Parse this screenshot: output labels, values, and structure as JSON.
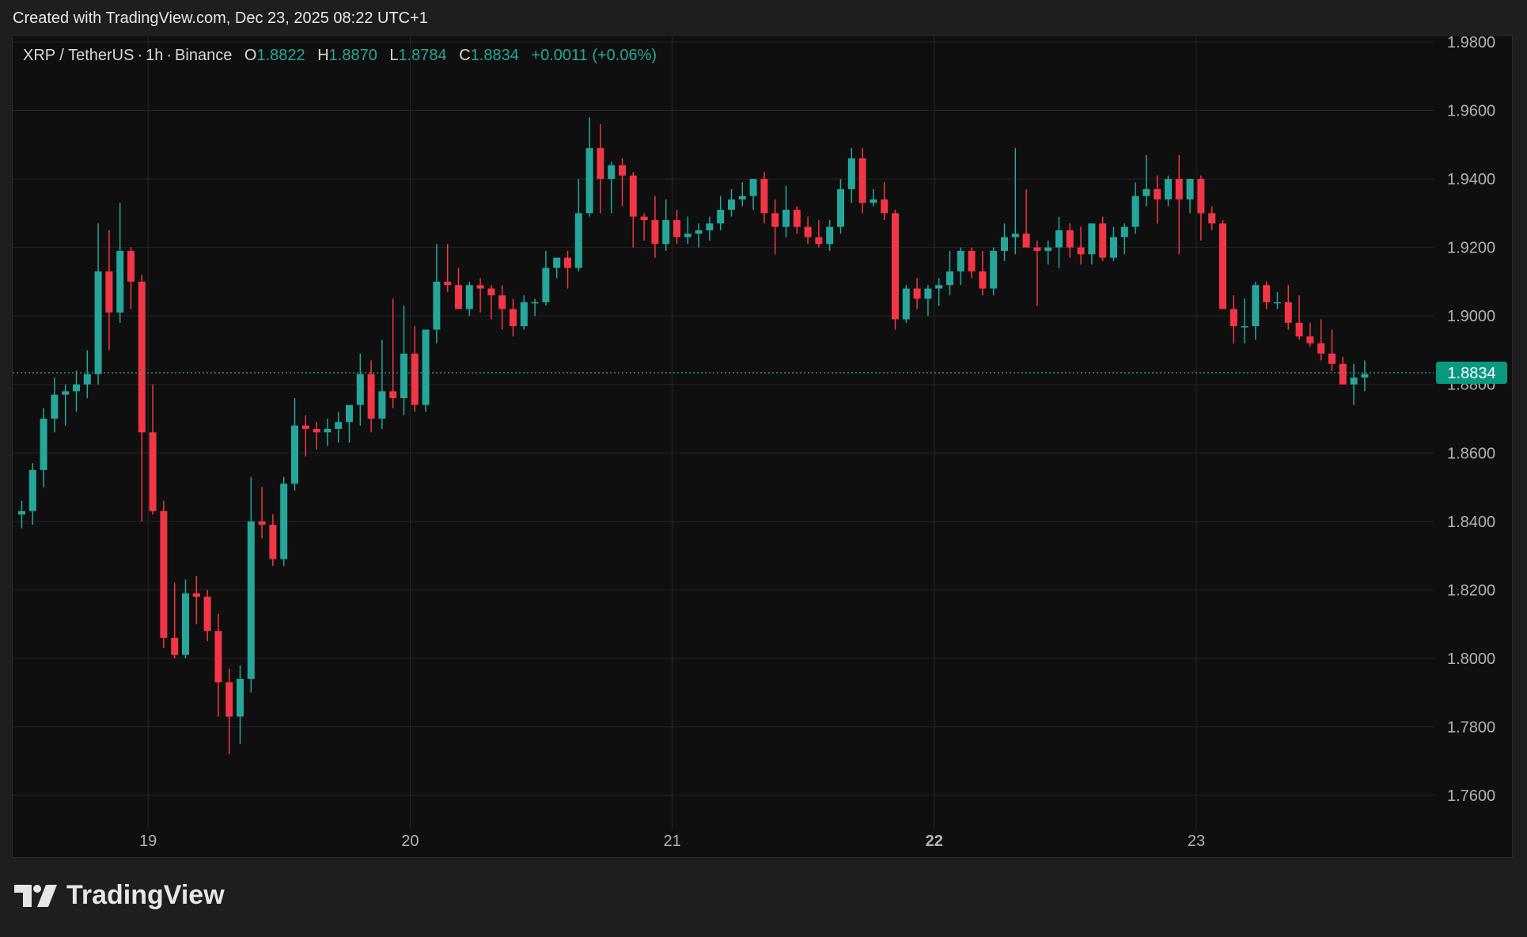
{
  "caption": "Created with TradingView.com, Dec 23, 2025 08:22 UTC+1",
  "legend": {
    "symbol": "XRP / TetherUS",
    "interval": "1h",
    "exchange": "Binance",
    "o_label": "O",
    "o_value": "1.8822",
    "h_label": "H",
    "h_value": "1.8870",
    "l_label": "L",
    "l_value": "1.8784",
    "c_label": "C",
    "c_value": "1.8834",
    "change": "+0.0011 (+0.06%)"
  },
  "logo_text": "TradingView",
  "colors": {
    "up": "#26a69a",
    "down": "#f23645",
    "grid": "#262626",
    "axis_text": "#b2b2b2",
    "price_tag_bg": "#089981"
  },
  "chart_data": {
    "type": "candlestick",
    "title": "XRP / TetherUS · 1h · Binance",
    "ylim": [
      1.75,
      1.985
    ],
    "y_ticks": [
      "1.9800",
      "1.9600",
      "1.9400",
      "1.9200",
      "1.9000",
      "1.8800",
      "1.8600",
      "1.8400",
      "1.8200",
      "1.8000",
      "1.7800",
      "1.7600"
    ],
    "x_ticks": [
      "19",
      "20",
      "21",
      "22",
      "23"
    ],
    "x_ticks_bold": [
      "22"
    ],
    "last_price": "1.8834",
    "last_price_value": 1.8834,
    "grid": true,
    "candles": [
      [
        1.842,
        1.846,
        1.838,
        1.843
      ],
      [
        1.843,
        1.857,
        1.839,
        1.855
      ],
      [
        1.855,
        1.873,
        1.85,
        1.87
      ],
      [
        1.87,
        1.882,
        1.866,
        1.877
      ],
      [
        1.877,
        1.88,
        1.868,
        1.878
      ],
      [
        1.878,
        1.884,
        1.872,
        1.88
      ],
      [
        1.88,
        1.89,
        1.876,
        1.883
      ],
      [
        1.883,
        1.927,
        1.88,
        1.913
      ],
      [
        1.913,
        1.925,
        1.89,
        1.901
      ],
      [
        1.901,
        1.933,
        1.898,
        1.919
      ],
      [
        1.919,
        1.92,
        1.902,
        1.91
      ],
      [
        1.91,
        1.912,
        1.84,
        1.866
      ],
      [
        1.866,
        1.88,
        1.842,
        1.843
      ],
      [
        1.843,
        1.846,
        1.803,
        1.806
      ],
      [
        1.806,
        1.822,
        1.8,
        1.801
      ],
      [
        1.801,
        1.823,
        1.8,
        1.819
      ],
      [
        1.819,
        1.824,
        1.81,
        1.818
      ],
      [
        1.818,
        1.82,
        1.805,
        1.808
      ],
      [
        1.808,
        1.813,
        1.783,
        1.793
      ],
      [
        1.793,
        1.797,
        1.772,
        1.783
      ],
      [
        1.783,
        1.798,
        1.775,
        1.794
      ],
      [
        1.794,
        1.853,
        1.79,
        1.84
      ],
      [
        1.84,
        1.85,
        1.835,
        1.839
      ],
      [
        1.839,
        1.842,
        1.827,
        1.829
      ],
      [
        1.829,
        1.853,
        1.827,
        1.851
      ],
      [
        1.851,
        1.876,
        1.849,
        1.868
      ],
      [
        1.868,
        1.871,
        1.859,
        1.867
      ],
      [
        1.867,
        1.869,
        1.861,
        1.866
      ],
      [
        1.866,
        1.87,
        1.862,
        1.867
      ],
      [
        1.867,
        1.872,
        1.863,
        1.869
      ],
      [
        1.869,
        1.873,
        1.863,
        1.874
      ],
      [
        1.874,
        1.889,
        1.868,
        1.883
      ],
      [
        1.883,
        1.887,
        1.866,
        1.87
      ],
      [
        1.87,
        1.893,
        1.867,
        1.878
      ],
      [
        1.878,
        1.905,
        1.873,
        1.876
      ],
      [
        1.876,
        1.903,
        1.871,
        1.889
      ],
      [
        1.889,
        1.897,
        1.872,
        1.874
      ],
      [
        1.874,
        1.895,
        1.872,
        1.896
      ],
      [
        1.896,
        1.921,
        1.892,
        1.91
      ],
      [
        1.91,
        1.921,
        1.907,
        1.909
      ],
      [
        1.909,
        1.914,
        1.902,
        1.902
      ],
      [
        1.902,
        1.91,
        1.9,
        1.909
      ],
      [
        1.909,
        1.911,
        1.901,
        1.908
      ],
      [
        1.908,
        1.909,
        1.899,
        1.906
      ],
      [
        1.906,
        1.909,
        1.896,
        1.902
      ],
      [
        1.902,
        1.905,
        1.894,
        1.897
      ],
      [
        1.897,
        1.906,
        1.896,
        1.904
      ],
      [
        1.904,
        1.905,
        1.9,
        1.904
      ],
      [
        1.904,
        1.919,
        1.903,
        1.914
      ],
      [
        1.914,
        1.917,
        1.911,
        1.917
      ],
      [
        1.917,
        1.919,
        1.908,
        1.914
      ],
      [
        1.914,
        1.94,
        1.913,
        1.93
      ],
      [
        1.93,
        1.958,
        1.929,
        1.949
      ],
      [
        1.949,
        1.956,
        1.93,
        1.94
      ],
      [
        1.94,
        1.945,
        1.93,
        1.944
      ],
      [
        1.944,
        1.946,
        1.932,
        1.941
      ],
      [
        1.941,
        1.942,
        1.92,
        1.929
      ],
      [
        1.929,
        1.93,
        1.922,
        1.928
      ],
      [
        1.928,
        1.935,
        1.917,
        1.921
      ],
      [
        1.921,
        1.934,
        1.919,
        1.928
      ],
      [
        1.928,
        1.931,
        1.921,
        1.923
      ],
      [
        1.923,
        1.929,
        1.921,
        1.924
      ],
      [
        1.924,
        1.927,
        1.92,
        1.925
      ],
      [
        1.925,
        1.929,
        1.922,
        1.927
      ],
      [
        1.927,
        1.935,
        1.925,
        1.931
      ],
      [
        1.931,
        1.937,
        1.929,
        1.934
      ],
      [
        1.934,
        1.939,
        1.932,
        1.935
      ],
      [
        1.935,
        1.94,
        1.931,
        1.94
      ],
      [
        1.94,
        1.942,
        1.927,
        1.93
      ],
      [
        1.93,
        1.934,
        1.918,
        1.926
      ],
      [
        1.926,
        1.938,
        1.923,
        1.931
      ],
      [
        1.931,
        1.932,
        1.924,
        1.926
      ],
      [
        1.926,
        1.929,
        1.921,
        1.923
      ],
      [
        1.923,
        1.928,
        1.92,
        1.921
      ],
      [
        1.921,
        1.928,
        1.919,
        1.926
      ],
      [
        1.926,
        1.94,
        1.924,
        1.937
      ],
      [
        1.937,
        1.949,
        1.933,
        1.946
      ],
      [
        1.946,
        1.949,
        1.93,
        1.933
      ],
      [
        1.933,
        1.937,
        1.932,
        1.934
      ],
      [
        1.934,
        1.939,
        1.928,
        1.93
      ],
      [
        1.93,
        1.931,
        1.896,
        1.899
      ],
      [
        1.899,
        1.909,
        1.898,
        1.908
      ],
      [
        1.908,
        1.911,
        1.902,
        1.905
      ],
      [
        1.905,
        1.909,
        1.9,
        1.908
      ],
      [
        1.908,
        1.911,
        1.903,
        1.909
      ],
      [
        1.909,
        1.919,
        1.906,
        1.913
      ],
      [
        1.913,
        1.92,
        1.909,
        1.919
      ],
      [
        1.919,
        1.92,
        1.911,
        1.913
      ],
      [
        1.913,
        1.919,
        1.906,
        1.908
      ],
      [
        1.908,
        1.92,
        1.906,
        1.919
      ],
      [
        1.919,
        1.927,
        1.916,
        1.923
      ],
      [
        1.923,
        1.949,
        1.918,
        1.924
      ],
      [
        1.924,
        1.937,
        1.922,
        1.92
      ],
      [
        1.92,
        1.922,
        1.903,
        1.919
      ],
      [
        1.919,
        1.922,
        1.915,
        1.92
      ],
      [
        1.92,
        1.929,
        1.914,
        1.925
      ],
      [
        1.925,
        1.927,
        1.917,
        1.92
      ],
      [
        1.92,
        1.926,
        1.915,
        1.918
      ],
      [
        1.918,
        1.926,
        1.915,
        1.927
      ],
      [
        1.927,
        1.929,
        1.916,
        1.917
      ],
      [
        1.917,
        1.926,
        1.916,
        1.923
      ],
      [
        1.923,
        1.927,
        1.918,
        1.926
      ],
      [
        1.926,
        1.939,
        1.924,
        1.935
      ],
      [
        1.935,
        1.947,
        1.932,
        1.937
      ],
      [
        1.937,
        1.941,
        1.927,
        1.934
      ],
      [
        1.934,
        1.941,
        1.932,
        1.94
      ],
      [
        1.94,
        1.947,
        1.918,
        1.934
      ],
      [
        1.934,
        1.94,
        1.93,
        1.94
      ],
      [
        1.94,
        1.941,
        1.922,
        1.93
      ],
      [
        1.93,
        1.932,
        1.925,
        1.927
      ],
      [
        1.927,
        1.928,
        1.902,
        1.902
      ],
      [
        1.902,
        1.906,
        1.892,
        1.897
      ],
      [
        1.897,
        1.905,
        1.892,
        1.897
      ],
      [
        1.897,
        1.91,
        1.893,
        1.909
      ],
      [
        1.909,
        1.91,
        1.902,
        1.904
      ],
      [
        1.904,
        1.907,
        1.902,
        1.904
      ],
      [
        1.904,
        1.909,
        1.896,
        1.898
      ],
      [
        1.898,
        1.906,
        1.893,
        1.894
      ],
      [
        1.894,
        1.898,
        1.891,
        1.892
      ],
      [
        1.892,
        1.899,
        1.887,
        1.889
      ],
      [
        1.889,
        1.896,
        1.884,
        1.886
      ],
      [
        1.886,
        1.888,
        1.88,
        1.88
      ],
      [
        1.88,
        1.886,
        1.874,
        1.882
      ],
      [
        1.882,
        1.887,
        1.878,
        1.883
      ]
    ]
  }
}
